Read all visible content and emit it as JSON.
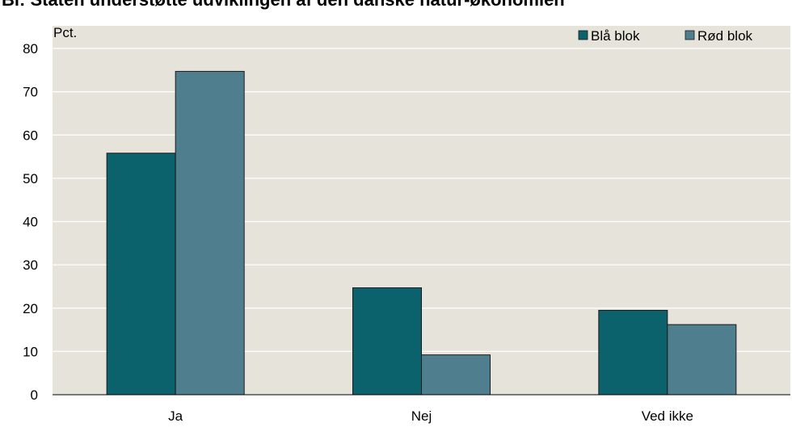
{
  "chart_data": {
    "type": "bar",
    "title": "Bl: Staten understøtte udviklingen af den danske natur-økonomien",
    "ylabel": "Pct.",
    "ylim": [
      0,
      80
    ],
    "yticks": [
      0,
      10,
      20,
      30,
      40,
      50,
      60,
      70,
      80
    ],
    "categories": [
      "Ja",
      "Nej",
      "Ved ikke"
    ],
    "series": [
      {
        "name": "Blå blok",
        "values": [
          55.8,
          24.7,
          19.5
        ],
        "color": "#0b616c"
      },
      {
        "name": "Rød blok",
        "values": [
          74.7,
          9.2,
          16.2
        ],
        "color": "#4f7f8e"
      }
    ],
    "grid": true,
    "legend": "top-right",
    "colors": {
      "plot_background": "#e6e4da",
      "gridline": "#ffffff",
      "axis": "#000000"
    }
  }
}
